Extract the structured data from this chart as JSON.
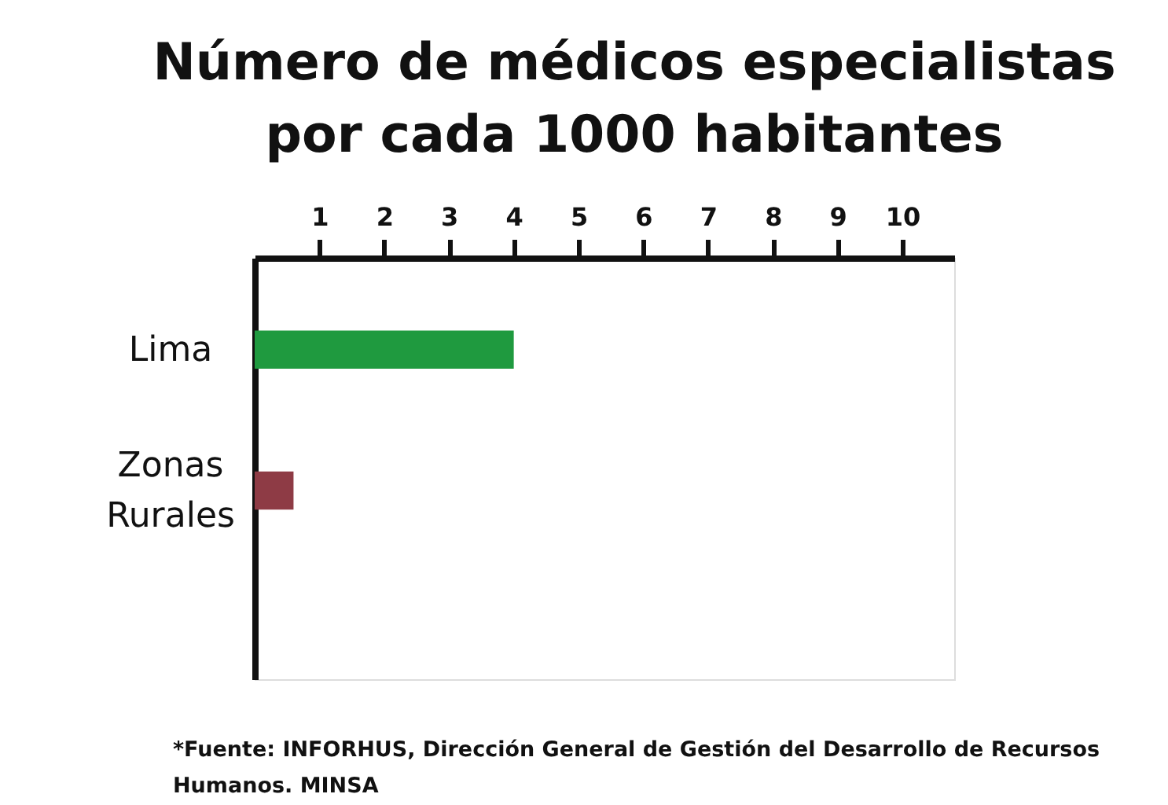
{
  "chart_data": {
    "type": "bar",
    "orientation": "horizontal",
    "title": "Número de médicos especialistas por cada 1000 habitantes",
    "categories": [
      "Lima",
      "Zonas Rurales"
    ],
    "values": [
      4,
      0.6
    ],
    "colors": [
      "#1f9a3f",
      "#8e3b45"
    ],
    "xlim": [
      0,
      10.8
    ],
    "xticks": [
      1,
      2,
      3,
      4,
      5,
      6,
      7,
      8,
      9,
      10
    ],
    "grid": false,
    "annotations": [
      "*Fuente: INFORHUS, Dirección General de Gestión del Desarrollo de Recursos Humanos. MINSA"
    ]
  }
}
